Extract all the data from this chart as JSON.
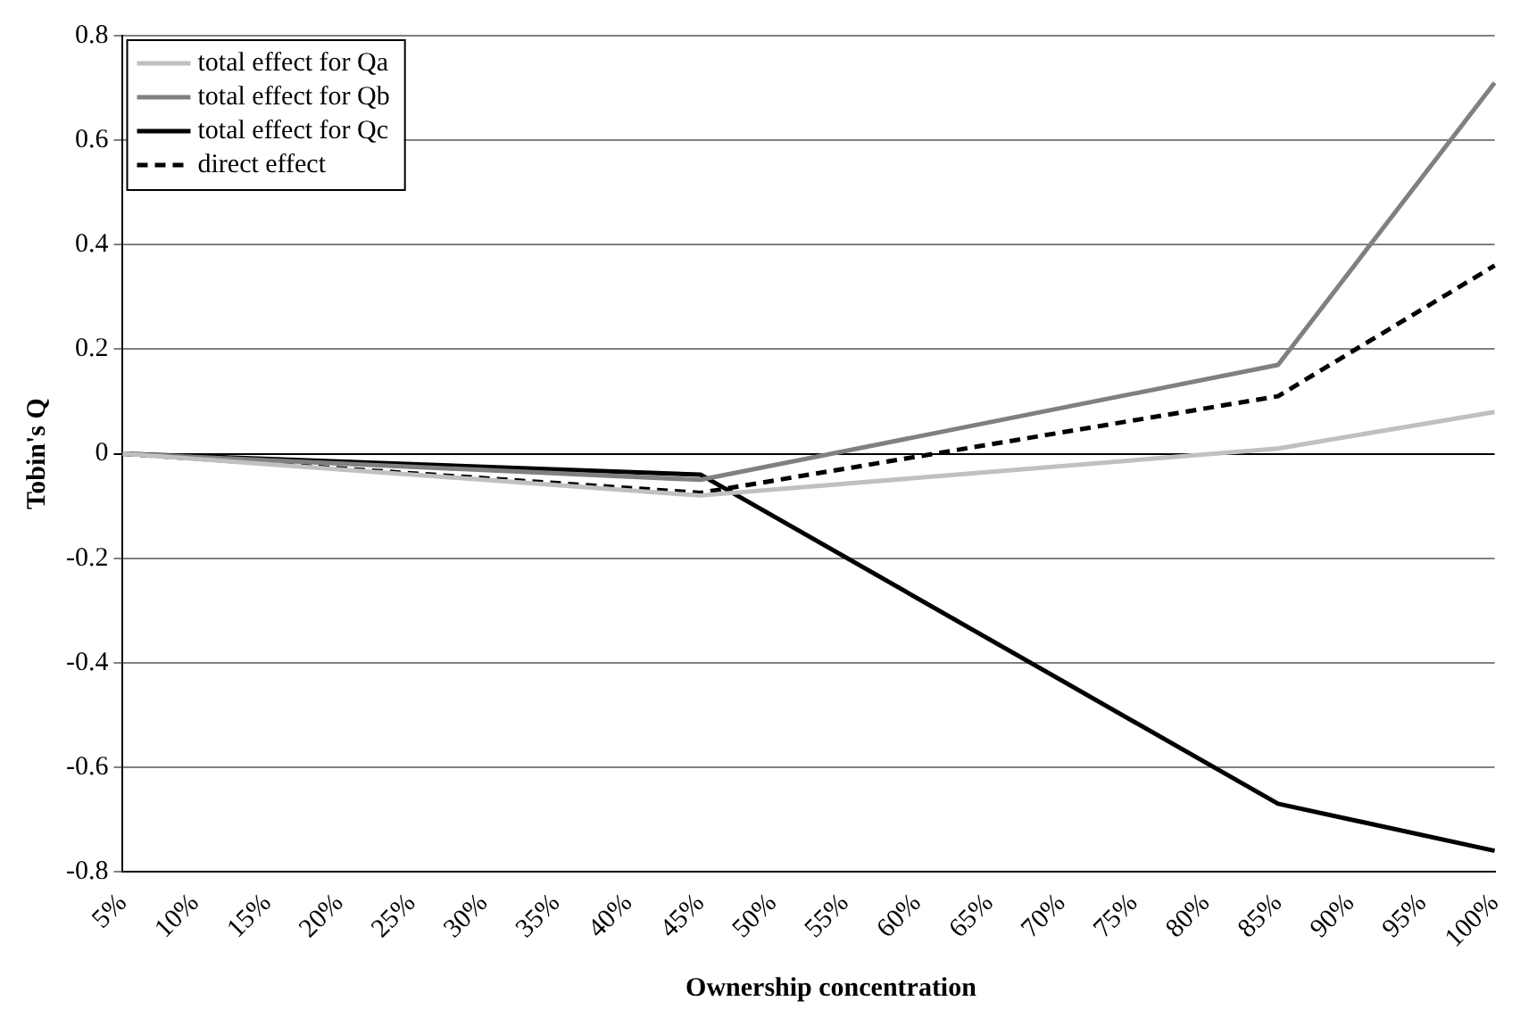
{
  "chart_data": {
    "type": "line",
    "xlabel": "Ownership concentration",
    "ylabel": "Tobin's Q",
    "categories": [
      "5%",
      "10%",
      "15%",
      "20%",
      "25%",
      "30%",
      "35%",
      "40%",
      "45%",
      "50%",
      "55%",
      "60%",
      "65%",
      "70%",
      "75%",
      "80%",
      "85%",
      "90%",
      "95%",
      "100%"
    ],
    "series": [
      {
        "name": "total effect for Qa",
        "color": "#c0c0c0",
        "values": [
          0,
          null,
          null,
          null,
          null,
          null,
          null,
          null,
          -0.08,
          null,
          null,
          null,
          null,
          null,
          null,
          null,
          0.01,
          null,
          null,
          0.08
        ]
      },
      {
        "name": "total effect for Qb",
        "color": "#808080",
        "values": [
          0,
          null,
          null,
          null,
          null,
          null,
          null,
          null,
          -0.05,
          null,
          null,
          null,
          null,
          null,
          null,
          null,
          0.17,
          null,
          null,
          0.71
        ]
      },
      {
        "name": "total effect for Qc",
        "color": "#000000",
        "values": [
          0,
          null,
          null,
          null,
          null,
          null,
          null,
          null,
          -0.04,
          null,
          null,
          null,
          null,
          null,
          null,
          null,
          -0.67,
          null,
          null,
          -0.76
        ]
      },
      {
        "name": "direct effect",
        "color": "#000000",
        "line_style": "dashed",
        "values": [
          0,
          null,
          null,
          null,
          null,
          null,
          null,
          null,
          -0.075,
          null,
          null,
          null,
          null,
          null,
          null,
          null,
          0.11,
          null,
          null,
          0.36
        ]
      }
    ],
    "ylim": [
      -0.8,
      0.8
    ],
    "yticks": [
      -0.8,
      -0.6,
      -0.4,
      -0.2,
      0,
      0.2,
      0.4,
      0.6,
      0.8
    ],
    "grid": "y",
    "legend": "top left",
    "marker": "none"
  }
}
